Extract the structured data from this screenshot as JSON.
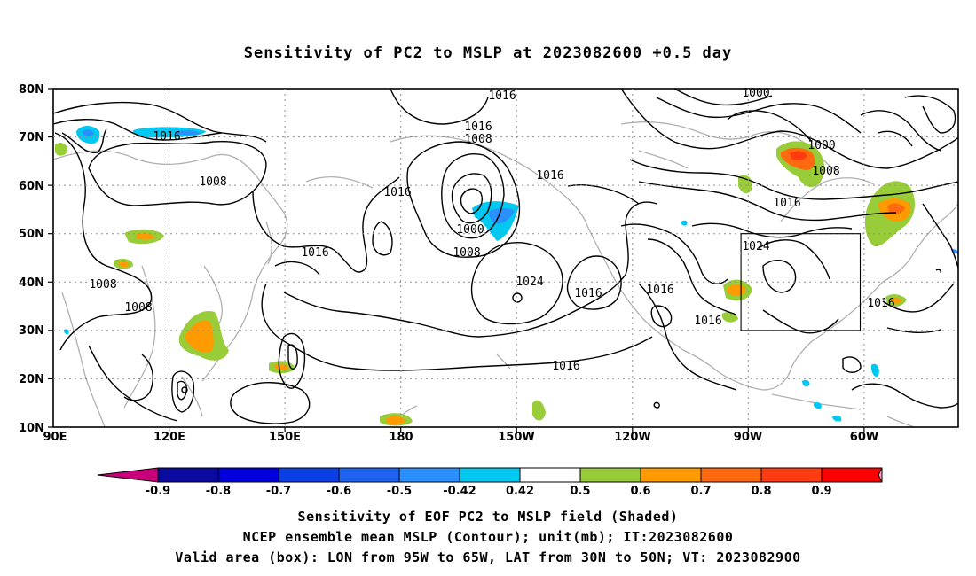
{
  "title": "Sensitivity of PC2 to MSLP at 2023082600 +0.5 day",
  "map": {
    "lat_labels": [
      "80N",
      "70N",
      "60N",
      "50N",
      "40N",
      "30N",
      "20N",
      "10N"
    ],
    "lon_labels": [
      "90E",
      "120E",
      "150E",
      "180",
      "150W",
      "120W",
      "90W",
      "60W"
    ],
    "contour_labels": [
      "1016",
      "1000",
      "1008",
      "1016",
      "1016",
      "1000",
      "1008",
      "1016",
      "1016",
      "1008",
      "1000",
      "1016",
      "1016",
      "1024",
      "1016",
      "1008",
      "1008",
      "1016",
      "1008",
      "1024",
      "1016",
      "1016",
      "1016",
      "1016",
      "1016"
    ],
    "valid_box": {
      "lon_from": "95W",
      "lon_to": "65W",
      "lat_from": "30N",
      "lat_to": "50N"
    }
  },
  "colorbar": {
    "labels": [
      "-0.9",
      "-0.8",
      "-0.7",
      "-0.6",
      "-0.5",
      "-0.42",
      "0.42",
      "0.5",
      "0.6",
      "0.7",
      "0.8",
      "0.9"
    ],
    "colors": [
      "#c8007a",
      "#0a0aa0",
      "#0000dc",
      "#0b3fe6",
      "#1e64f0",
      "#2b90ff",
      "#00c8f0",
      "#ffffff",
      "#98cc38",
      "#ff9a00",
      "#ff6a10",
      "#ff3c10",
      "#ff0000",
      "#ff9ec8"
    ]
  },
  "footer": {
    "line1": "Sensitivity of EOF PC2 to MSLP field (Shaded)",
    "line2": "NCEP ensemble mean MSLP (Contour); unit(mb); IT:2023082600",
    "line3": "Valid area (box): LON from 95W to 65W, LAT from 30N to 50N; VT: 2023082900"
  }
}
